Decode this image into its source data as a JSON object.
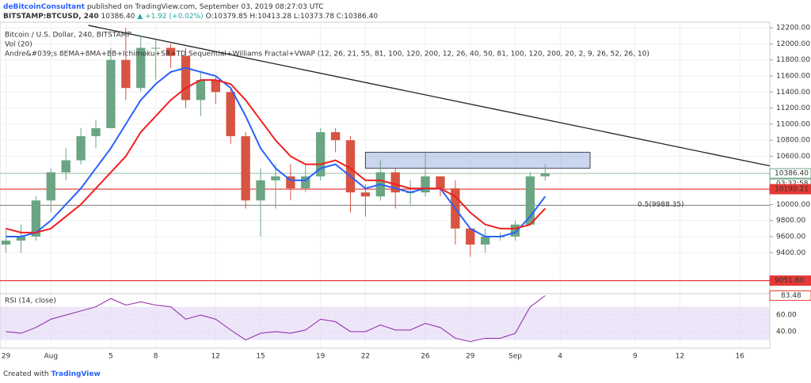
{
  "header": {
    "author": "deBitcoinConsultant",
    "published": "published on TradingView.com, September 03, 2019 08:27:03 UTC",
    "symbol": "BITSTAMP:BTCUSD, 240",
    "last": "10386.40",
    "change": "▲ +1.92 (+0.02%)",
    "ohlc": "O:10379.85 H:10413.28 L:10373.78 C:10386.40"
  },
  "legend": {
    "title": "Bitcoin / U.S. Dollar, 240, BITSTAMP",
    "volume": "Vol (20)",
    "indicator": "Andre&#039;s 8EMA+8MA+BB+Ichimoku+SR+TD Sequential+Williams Fractal+VWAP (12, 26, 21, 55, 81, 100, 120, 200, 12, 26, 40, 50, 81, 100, 120, 200, 20, 2, 9, 26, 52, 26, 10)"
  },
  "footer": {
    "created": "Created with",
    "brand": "TradingView"
  },
  "chart_data": {
    "type": "candlestick",
    "xlim": [
      -0.4,
      51
    ],
    "xticks": [
      {
        "value": 0,
        "label": "29"
      },
      {
        "value": 3,
        "label": "Aug"
      },
      {
        "value": 7,
        "label": "5"
      },
      {
        "value": 10,
        "label": "8"
      },
      {
        "value": 14,
        "label": "12"
      },
      {
        "value": 17,
        "label": "15"
      },
      {
        "value": 21,
        "label": "19"
      },
      {
        "value": 24,
        "label": "22"
      },
      {
        "value": 28,
        "label": "26"
      },
      {
        "value": 31,
        "label": "29"
      },
      {
        "value": 34,
        "label": "Sep"
      },
      {
        "value": 37,
        "label": "4"
      },
      {
        "value": 42,
        "label": "9"
      },
      {
        "value": 45,
        "label": "12"
      },
      {
        "value": 49,
        "label": "16"
      }
    ],
    "ylim": [
      8900,
      12270
    ],
    "yticks": [
      {
        "value": 9400,
        "label": "9400.00"
      },
      {
        "value": 9600,
        "label": "9600.00"
      },
      {
        "value": 9800,
        "label": "9800.00"
      },
      {
        "value": 10000,
        "label": "10000.00"
      },
      {
        "value": 10200,
        "label": "10200.00"
      },
      {
        "value": 10400,
        "label": "10400.00"
      },
      {
        "value": 10600,
        "label": "10600.00"
      },
      {
        "value": 10800,
        "label": "10800.00"
      },
      {
        "value": 11000,
        "label": "11000.00"
      },
      {
        "value": 11200,
        "label": "11200.00"
      },
      {
        "value": 11400,
        "label": "11400.00"
      },
      {
        "value": 11600,
        "label": "11600.00"
      },
      {
        "value": 11800,
        "label": "11800.00"
      },
      {
        "value": 12000,
        "label": "12000.00"
      },
      {
        "value": 12200,
        "label": "12200.00"
      }
    ],
    "up_color": "#6ba583",
    "down_color": "#d75442",
    "candles": {
      "x": [
        0,
        1,
        2,
        3,
        4,
        5,
        6,
        7,
        8,
        9,
        10,
        11,
        12,
        13,
        14,
        15,
        16,
        17,
        18,
        19,
        20,
        21,
        22,
        23,
        24,
        25,
        26,
        27,
        28,
        29,
        30,
        31,
        32,
        33,
        34,
        35,
        36
      ],
      "open": [
        9500,
        9550,
        9600,
        10050,
        10400,
        10550,
        10850,
        10950,
        11800,
        11450,
        11950,
        11950,
        11850,
        11300,
        11550,
        11400,
        10850,
        10050,
        10300,
        10350,
        10200,
        10350,
        10900,
        10800,
        10150,
        10100,
        10400,
        10150,
        10150,
        10350,
        10200,
        9700,
        9500,
        9600,
        9600,
        9750,
        10350
      ],
      "high": [
        9700,
        9750,
        10100,
        10450,
        10700,
        10950,
        11050,
        11950,
        12200,
        12100,
        12050,
        12000,
        11950,
        11650,
        11600,
        11450,
        10900,
        10450,
        10500,
        10500,
        10500,
        10950,
        10950,
        10850,
        10250,
        10550,
        10450,
        10300,
        10650,
        10350,
        10300,
        9700,
        9700,
        9650,
        9800,
        10400,
        10500
      ],
      "low": [
        9400,
        9400,
        9550,
        9900,
        10300,
        10500,
        10700,
        10950,
        11300,
        11400,
        11550,
        11700,
        11200,
        11100,
        11250,
        10750,
        9950,
        9600,
        9950,
        10050,
        10150,
        10300,
        10650,
        9900,
        9850,
        10050,
        9950,
        10000,
        10100,
        10100,
        9500,
        9350,
        9400,
        9550,
        9550,
        9750,
        10300
      ],
      "close": [
        9550,
        9600,
        10050,
        10400,
        10550,
        10850,
        10950,
        11800,
        11450,
        11950,
        11950,
        11850,
        11300,
        11550,
        11400,
        10850,
        10050,
        10300,
        10350,
        10200,
        10350,
        10900,
        10800,
        10150,
        10100,
        10400,
        10150,
        10150,
        10350,
        10200,
        9700,
        9500,
        9600,
        9600,
        9750,
        10350,
        10386.4
      ]
    },
    "series": [
      {
        "color": "#2962ff",
        "values": [
          9600,
          9600,
          9650,
          9800,
          10000,
          10200,
          10450,
          10700,
          11000,
          11300,
          11500,
          11650,
          11700,
          11650,
          11600,
          11450,
          11100,
          10700,
          10450,
          10300,
          10300,
          10450,
          10500,
          10350,
          10200,
          10250,
          10200,
          10150,
          10200,
          10200,
          9950,
          9700,
          9600,
          9600,
          9650,
          9850,
          10100
        ]
      },
      {
        "color": "#f02020",
        "values": [
          9700,
          9650,
          9650,
          9700,
          9850,
          10000,
          10200,
          10400,
          10600,
          10900,
          11100,
          11300,
          11450,
          11550,
          11550,
          11500,
          11300,
          11050,
          10800,
          10600,
          10500,
          10500,
          10550,
          10450,
          10300,
          10300,
          10250,
          10200,
          10200,
          10200,
          10100,
          9900,
          9750,
          9700,
          9700,
          9750,
          9950
        ]
      }
    ],
    "trendline": {
      "x": [
        5.5,
        51
      ],
      "y": [
        12230,
        10480
      ],
      "color": "#222222"
    },
    "zone": {
      "x": [
        24,
        39
      ],
      "y": [
        10450,
        10650
      ],
      "color": "#9fb3e0"
    },
    "levels": [
      {
        "value": 10386.4,
        "label": "10386.40",
        "color": "#6ba583",
        "sub": "03:32:58"
      },
      {
        "value": 10190.21,
        "label": "10190.21",
        "color": "#e53935"
      },
      {
        "value": 9051.6,
        "label": "9051.60",
        "color": "#e53935"
      }
    ],
    "fib": {
      "value": 9988.35,
      "label": "0.5(9988.35)",
      "color": "#888888"
    },
    "rsi": {
      "title": "RSI (14, close)",
      "ylim": [
        20,
        85
      ],
      "band": [
        30,
        70
      ],
      "color": "#8e24aa",
      "yticks": [
        {
          "value": 40,
          "label": "40.00"
        },
        {
          "value": 60,
          "label": "60.00"
        }
      ],
      "values": [
        40,
        38,
        45,
        55,
        60,
        65,
        70,
        80,
        72,
        76,
        72,
        70,
        55,
        60,
        55,
        42,
        30,
        38,
        40,
        38,
        42,
        55,
        52,
        40,
        40,
        48,
        42,
        42,
        50,
        45,
        32,
        28,
        32,
        32,
        38,
        70,
        83.48
      ],
      "value_label": "83.48"
    }
  }
}
